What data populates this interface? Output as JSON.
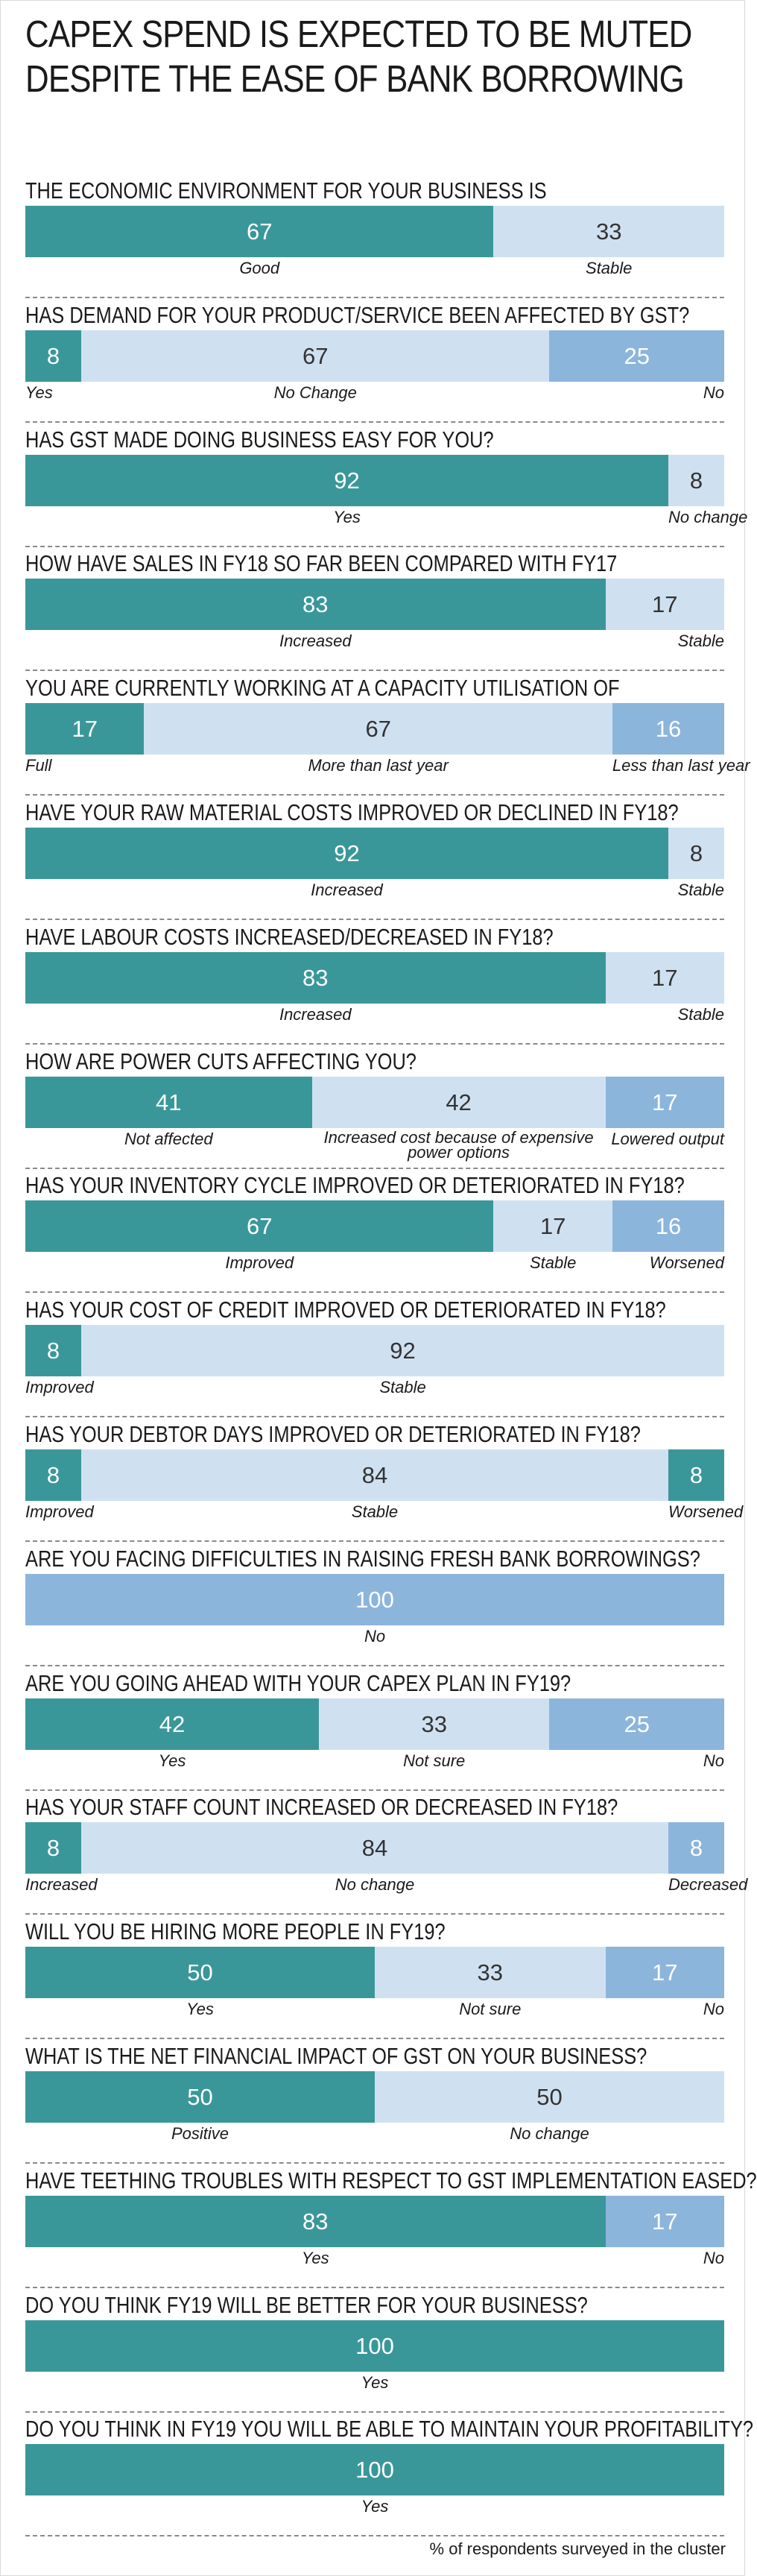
{
  "headline": {
    "line1": "CAPEX SPEND IS EXPECTED TO BE MUTED",
    "line2": "DESPITE THE EASE OF BANK BORROWING"
  },
  "footnote": "% of respondents surveyed in the cluster",
  "colors": {
    "teal": "#3a9799",
    "light": "#cfe1f1",
    "blue": "#8cb5dc",
    "dark_text": "#333333",
    "white_text": "#ffffff",
    "divider": "#8a8a8a"
  },
  "chart_data": {
    "type": "bar",
    "orientation": "horizontal-stacked-100",
    "unit": "% of respondents surveyed in the cluster",
    "questions": [
      {
        "title": "THE ECONOMIC ENVIRONMENT FOR YOUR BUSINESS IS",
        "segments": [
          {
            "value": 67,
            "label": "Good",
            "color": "teal"
          },
          {
            "value": 33,
            "label": "Stable",
            "color": "light"
          }
        ]
      },
      {
        "title": "HAS DEMAND FOR YOUR PRODUCT/SERVICE BEEN AFFECTED BY GST?",
        "segments": [
          {
            "value": 8,
            "label": "Yes",
            "color": "teal"
          },
          {
            "value": 67,
            "label": "No Change",
            "color": "light"
          },
          {
            "value": 25,
            "label": "No",
            "color": "blue"
          }
        ]
      },
      {
        "title": "HAS GST MADE DOING BUSINESS EASY FOR YOU?",
        "segments": [
          {
            "value": 92,
            "label": "Yes",
            "color": "teal"
          },
          {
            "value": 8,
            "label": "No change",
            "color": "light"
          }
        ]
      },
      {
        "title": "HOW HAVE SALES IN FY18 SO FAR BEEN COMPARED WITH FY17",
        "segments": [
          {
            "value": 83,
            "label": "Increased",
            "color": "teal"
          },
          {
            "value": 17,
            "label": "Stable",
            "color": "light"
          }
        ]
      },
      {
        "title": "YOU ARE CURRENTLY WORKING AT A CAPACITY UTILISATION OF",
        "segments": [
          {
            "value": 17,
            "label": "Full",
            "color": "teal"
          },
          {
            "value": 67,
            "label": "More than last year",
            "color": "light"
          },
          {
            "value": 16,
            "label": "Less than last year",
            "color": "blue"
          }
        ]
      },
      {
        "title": "HAVE YOUR RAW MATERIAL COSTS IMPROVED OR DECLINED IN FY18?",
        "segments": [
          {
            "value": 92,
            "label": "Increased",
            "color": "teal"
          },
          {
            "value": 8,
            "label": "Stable",
            "color": "light"
          }
        ]
      },
      {
        "title": "HAVE LABOUR COSTS INCREASED/DECREASED IN FY18?",
        "segments": [
          {
            "value": 83,
            "label": "Increased",
            "color": "teal"
          },
          {
            "value": 17,
            "label": "Stable",
            "color": "light"
          }
        ]
      },
      {
        "title": "HOW ARE POWER CUTS AFFECTING YOU?",
        "segments": [
          {
            "value": 41,
            "label": "Not affected",
            "color": "teal"
          },
          {
            "value": 42,
            "label": "Increased cost because of expensive power options",
            "color": "light"
          },
          {
            "value": 17,
            "label": "Lowered output",
            "color": "blue"
          }
        ]
      },
      {
        "title": "HAS YOUR INVENTORY CYCLE IMPROVED OR DETERIORATED IN FY18?",
        "segments": [
          {
            "value": 67,
            "label": "Improved",
            "color": "teal"
          },
          {
            "value": 17,
            "label": "Stable",
            "color": "light"
          },
          {
            "value": 16,
            "label": "Worsened",
            "color": "blue"
          }
        ]
      },
      {
        "title": "HAS YOUR COST OF CREDIT IMPROVED OR DETERIORATED IN FY18?",
        "segments": [
          {
            "value": 8,
            "label": "Improved",
            "color": "teal"
          },
          {
            "value": 92,
            "label": "Stable",
            "color": "light"
          }
        ]
      },
      {
        "title": "HAS YOUR DEBTOR DAYS IMPROVED OR DETERIORATED IN FY18?",
        "segments": [
          {
            "value": 8,
            "label": "Improved",
            "color": "teal"
          },
          {
            "value": 84,
            "label": "Stable",
            "color": "light"
          },
          {
            "value": 8,
            "label": "Worsened",
            "color": "teal"
          }
        ]
      },
      {
        "title": "ARE YOU FACING DIFFICULTIES IN RAISING FRESH BANK BORROWINGS?",
        "segments": [
          {
            "value": 100,
            "label": "No",
            "color": "blue"
          }
        ]
      },
      {
        "title": "ARE YOU GOING AHEAD WITH YOUR CAPEX PLAN IN FY19?",
        "segments": [
          {
            "value": 42,
            "label": "Yes",
            "color": "teal"
          },
          {
            "value": 33,
            "label": "Not sure",
            "color": "light"
          },
          {
            "value": 25,
            "label": "No",
            "color": "blue"
          }
        ]
      },
      {
        "title": "HAS YOUR STAFF COUNT INCREASED OR DECREASED IN FY18?",
        "segments": [
          {
            "value": 8,
            "label": "Increased",
            "color": "teal"
          },
          {
            "value": 84,
            "label": "No change",
            "color": "light"
          },
          {
            "value": 8,
            "label": "Decreased",
            "color": "blue"
          }
        ]
      },
      {
        "title": "WILL YOU BE HIRING MORE PEOPLE IN FY19?",
        "segments": [
          {
            "value": 50,
            "label": "Yes",
            "color": "teal"
          },
          {
            "value": 33,
            "label": "Not sure",
            "color": "light"
          },
          {
            "value": 17,
            "label": "No",
            "color": "blue"
          }
        ]
      },
      {
        "title": "WHAT IS THE NET FINANCIAL IMPACT OF GST ON YOUR BUSINESS?",
        "segments": [
          {
            "value": 50,
            "label": "Positive",
            "color": "teal"
          },
          {
            "value": 50,
            "label": "No change",
            "color": "light"
          }
        ]
      },
      {
        "title": "HAVE TEETHING TROUBLES WITH RESPECT TO GST IMPLEMENTATION EASED?",
        "segments": [
          {
            "value": 83,
            "label": "Yes",
            "color": "teal"
          },
          {
            "value": 17,
            "label": "No",
            "color": "blue"
          }
        ]
      },
      {
        "title": "DO YOU THINK FY19 WILL BE BETTER FOR YOUR BUSINESS?",
        "segments": [
          {
            "value": 100,
            "label": "Yes",
            "color": "teal"
          }
        ]
      },
      {
        "title": "DO YOU THINK IN FY19 YOU WILL BE ABLE TO MAINTAIN YOUR PROFITABILITY?",
        "segments": [
          {
            "value": 100,
            "label": "Yes",
            "color": "teal"
          }
        ]
      }
    ]
  }
}
